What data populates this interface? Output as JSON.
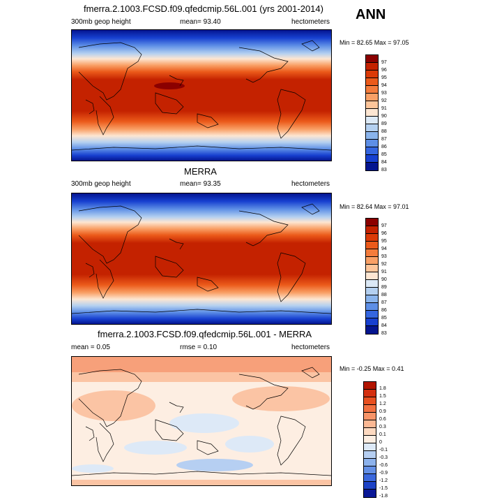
{
  "season": "ANN",
  "panels": [
    {
      "title": "fmerra.2.1003.FCSD.f09.qfedcmip.56L.001 (yrs 2001-2014)",
      "left_label": "300mb geop height",
      "center_label": "mean=  93.40",
      "right_label": "hectometers",
      "minmax": "Min =  82.65 Max =  97.05",
      "colorbar": {
        "labels": [
          "97",
          "96",
          "95",
          "94",
          "93",
          "92",
          "91",
          "90",
          "89",
          "88",
          "87",
          "86",
          "85",
          "84",
          "83"
        ],
        "colors": [
          "#8b0000",
          "#c42200",
          "#db3a07",
          "#eb5a1a",
          "#f47c3c",
          "#f9a066",
          "#fdc59a",
          "#fde6d2",
          "#dce9f6",
          "#b4d0f0",
          "#8ab4ec",
          "#5e8fe6",
          "#3566e0",
          "#1740d0",
          "#04158f"
        ]
      }
    },
    {
      "title": "MERRA",
      "left_label": "300mb geop height",
      "center_label": "mean=  93.35",
      "right_label": "hectometers",
      "minmax": "Min =  82.64 Max =  97.01",
      "colorbar": {
        "labels": [
          "97",
          "96",
          "95",
          "94",
          "93",
          "92",
          "91",
          "90",
          "89",
          "88",
          "87",
          "86",
          "85",
          "84",
          "83"
        ],
        "colors": [
          "#8b0000",
          "#c42200",
          "#db3a07",
          "#eb5a1a",
          "#f47c3c",
          "#f9a066",
          "#fdc59a",
          "#fde6d2",
          "#dce9f6",
          "#b4d0f0",
          "#8ab4ec",
          "#5e8fe6",
          "#3566e0",
          "#1740d0",
          "#04158f"
        ]
      }
    },
    {
      "title": "fmerra.2.1003.FCSD.f09.qfedcmip.56L.001 - MERRA",
      "left_label": "mean =   0.05",
      "center_label": "rmse =   0.10",
      "right_label": "hectometers",
      "minmax": "Min =  -0.25 Max =   0.41",
      "colorbar": {
        "labels": [
          "1.8",
          "1.5",
          "1.2",
          "0.9",
          "0.6",
          "0.3",
          "0.1",
          "0",
          "-0.1",
          "-0.3",
          "-0.6",
          "-0.9",
          "-1.2",
          "-1.5",
          "-1.8"
        ],
        "colors": [
          "#b21400",
          "#d43010",
          "#e85020",
          "#f27040",
          "#f79468",
          "#fbb894",
          "#fdd9c0",
          "#fdeee2",
          "#dde9f7",
          "#b6cff2",
          "#8cb2ec",
          "#6490e6",
          "#3b68dd",
          "#1c42c6",
          "#0a1896"
        ]
      }
    }
  ]
}
